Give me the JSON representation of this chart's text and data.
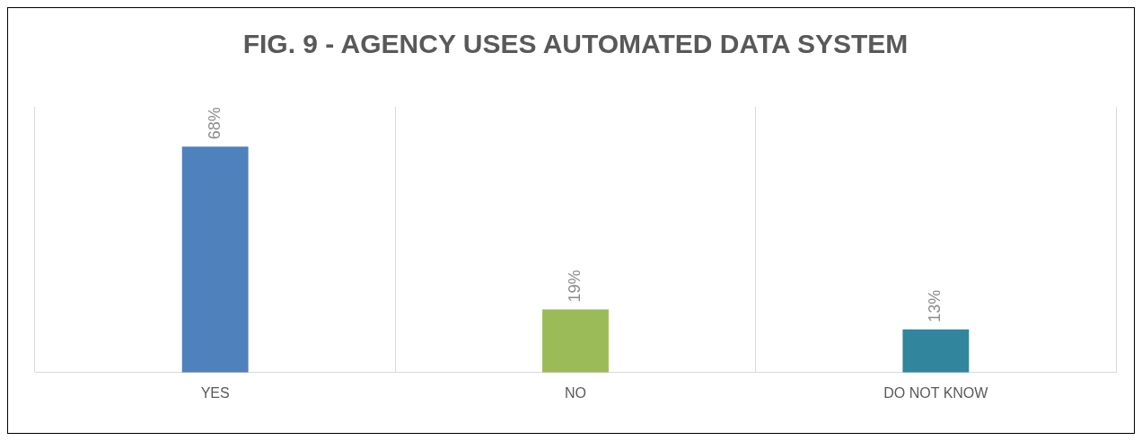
{
  "chart_data": {
    "type": "bar",
    "title": "FIG. 9 - AGENCY USES AUTOMATED DATA SYSTEM",
    "categories": [
      "YES",
      "NO",
      "DO NOT KNOW"
    ],
    "values": [
      68,
      19,
      13
    ],
    "colors": [
      "#4f81bd",
      "#9bbb59",
      "#31859c"
    ],
    "value_labels": [
      "68%",
      "19%",
      "13%"
    ],
    "ylim": [
      0,
      80
    ],
    "tick_labels": "x",
    "grid": "x"
  }
}
